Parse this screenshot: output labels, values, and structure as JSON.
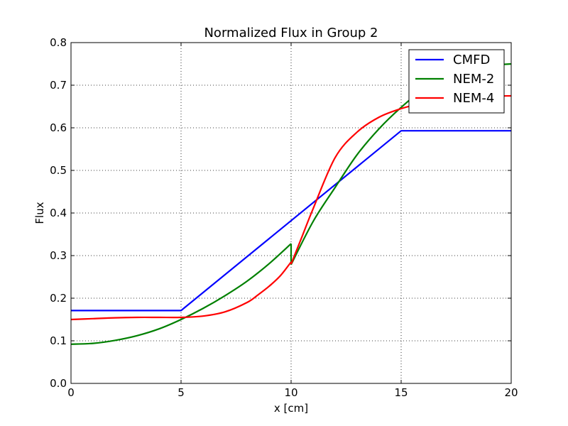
{
  "chart_data": {
    "type": "line",
    "title": "Normalized Flux in Group 2",
    "xlabel": "x [cm]",
    "ylabel": "Flux",
    "xlim": [
      0,
      20
    ],
    "ylim": [
      0,
      0.8
    ],
    "xticks": [
      0,
      5,
      10,
      15,
      20
    ],
    "xtick_labels": [
      "0",
      "5",
      "10",
      "15",
      "20"
    ],
    "yticks": [
      0,
      0.1,
      0.2,
      0.3,
      0.4,
      0.5,
      0.6,
      0.7,
      0.8
    ],
    "ytick_labels": [
      "0.0",
      "0.1",
      "0.2",
      "0.3",
      "0.4",
      "0.5",
      "0.6",
      "0.7",
      "0.8"
    ],
    "grid": true,
    "legend_position": "top-right",
    "series": [
      {
        "name": "CMFD",
        "color": "#0000ff",
        "x": [
          0,
          5,
          15,
          20
        ],
        "y": [
          0.171,
          0.171,
          0.593,
          0.593
        ]
      },
      {
        "name": "NEM-2",
        "color": "#008000",
        "segments": [
          {
            "x": [
              0,
              1,
              2,
              3,
              4,
              5,
              6,
              7,
              8,
              9,
              10
            ],
            "y": [
              0.092,
              0.094,
              0.101,
              0.112,
              0.128,
              0.15,
              0.176,
              0.206,
              0.24,
              0.281,
              0.328
            ]
          },
          {
            "x": [
              10,
              11,
              12,
              13,
              14,
              15,
              16,
              17,
              18,
              19,
              20
            ],
            "y": [
              0.279,
              0.38,
              0.46,
              0.537,
              0.598,
              0.648,
              0.69,
              0.718,
              0.736,
              0.746,
              0.75
            ]
          }
        ]
      },
      {
        "name": "NEM-4",
        "color": "#ff0000",
        "segments": [
          {
            "x": [
              0,
              1,
              2,
              3,
              4,
              5,
              6,
              7,
              8,
              8.5,
              9,
              9.5,
              10
            ],
            "y": [
              0.15,
              0.152,
              0.154,
              0.155,
              0.155,
              0.155,
              0.158,
              0.168,
              0.19,
              0.208,
              0.228,
              0.252,
              0.285
            ]
          },
          {
            "x": [
              10,
              10.5,
              11,
              12,
              13,
              14,
              15,
              16,
              17,
              18,
              19,
              20
            ],
            "y": [
              0.28,
              0.345,
              0.41,
              0.53,
              0.59,
              0.625,
              0.645,
              0.658,
              0.666,
              0.671,
              0.674,
              0.675
            ]
          }
        ]
      }
    ]
  }
}
